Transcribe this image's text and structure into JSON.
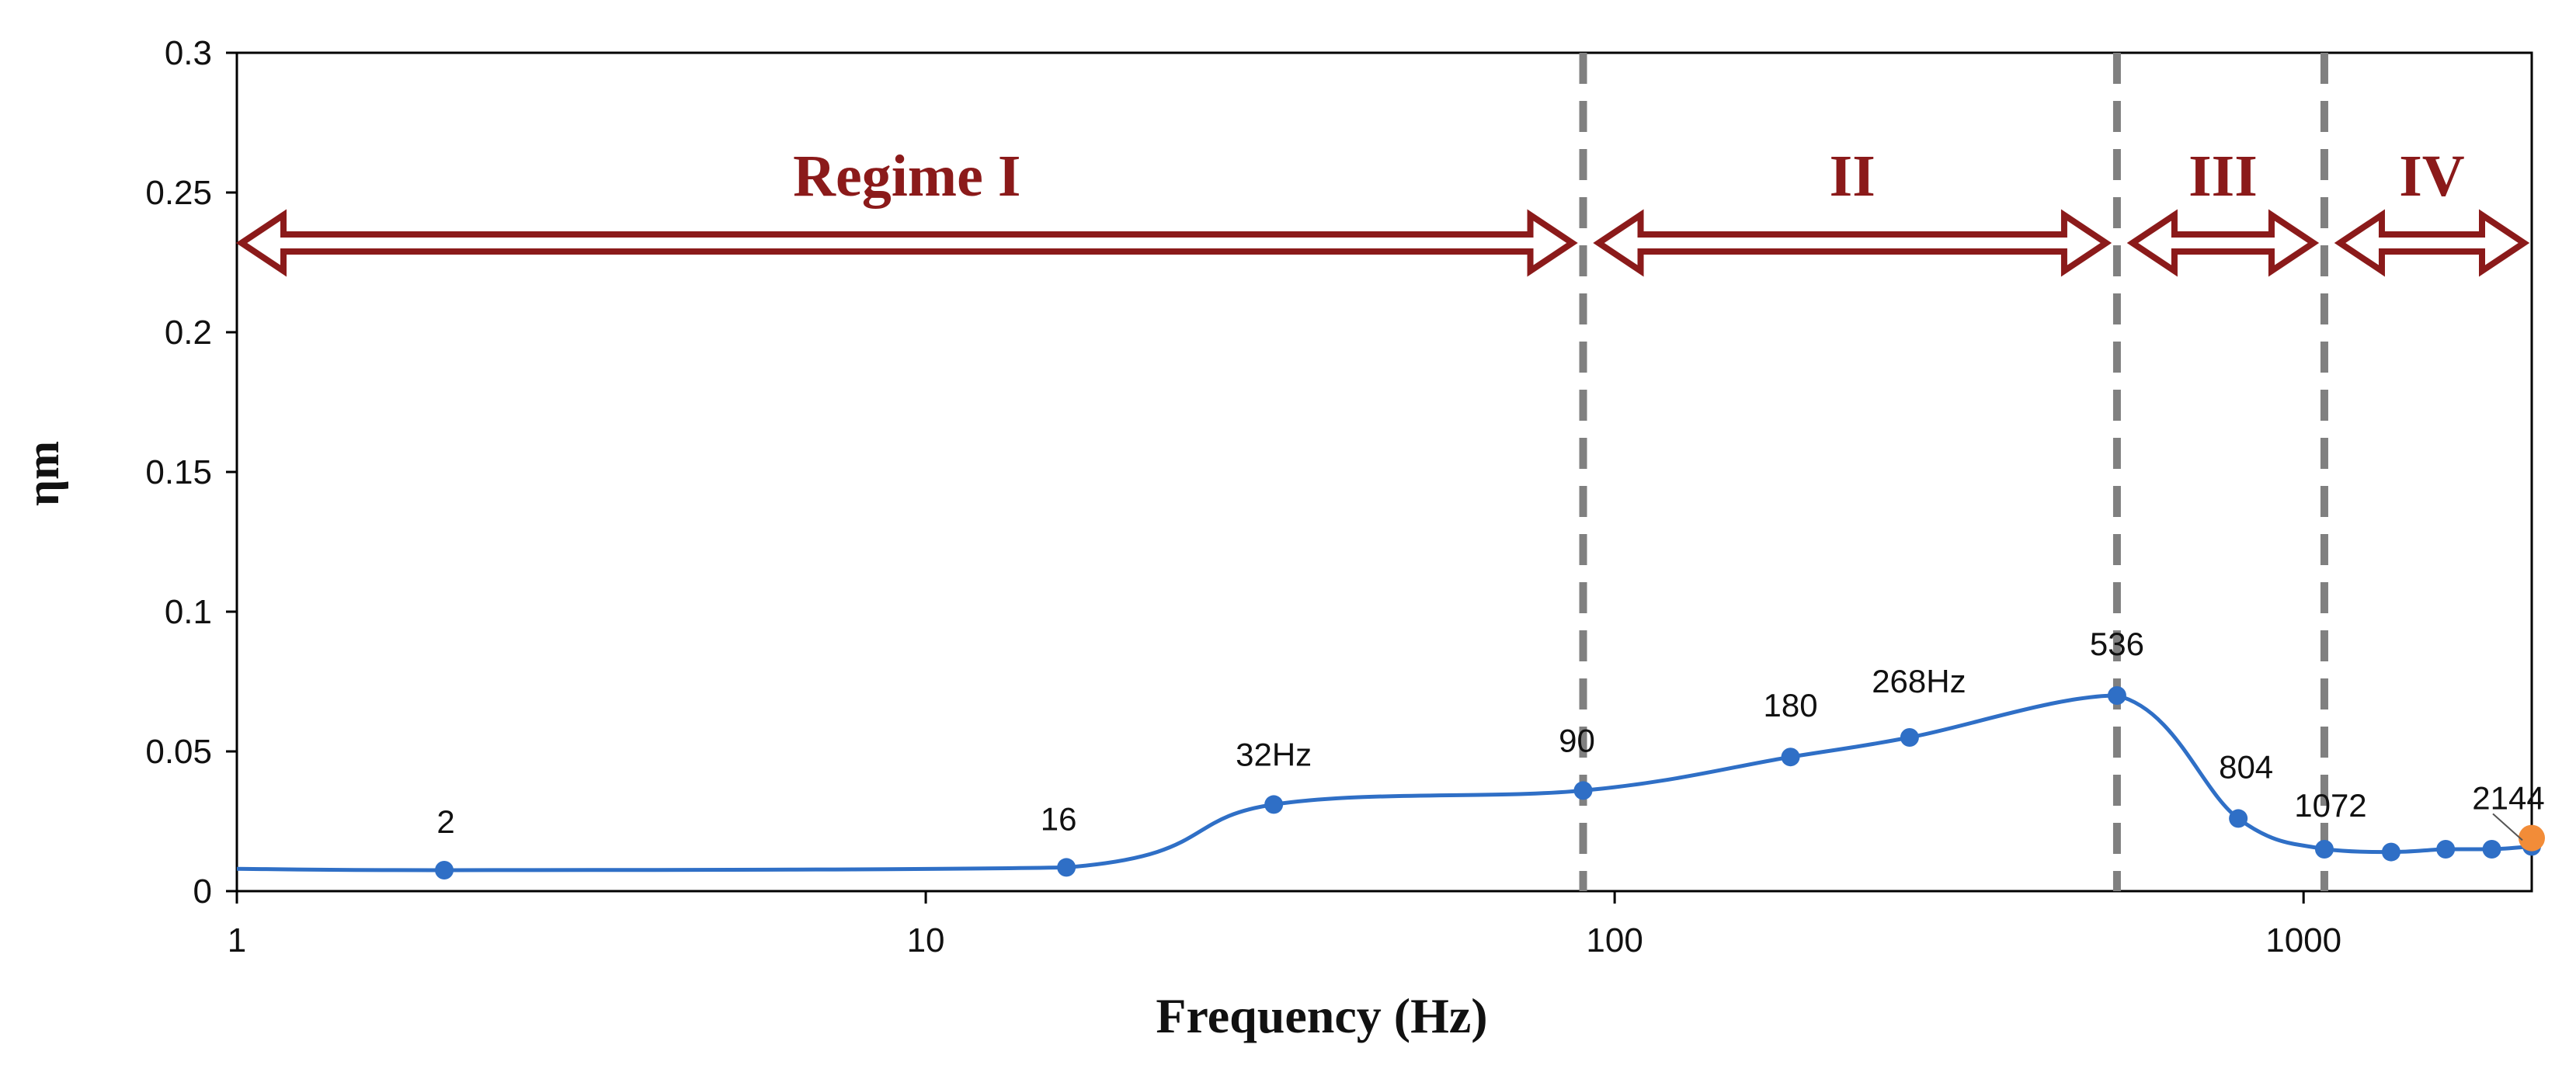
{
  "chart_data": {
    "type": "line",
    "xlabel": "Frequency (Hz)",
    "ylabel": "ηm",
    "xscale": "log",
    "xlim": [
      1,
      2144
    ],
    "ylim": [
      0,
      0.3
    ],
    "grid": false,
    "x_ticks": [
      "1",
      "10",
      "100",
      "1000"
    ],
    "y_ticks": [
      "0",
      "0.05",
      "0.1",
      "0.15",
      "0.2",
      "0.25",
      "0.3"
    ],
    "series": [
      {
        "color": "#2f6fc6",
        "points": [
          {
            "x": 1,
            "y": 0.008
          },
          {
            "x": 2,
            "y": 0.0075,
            "label": "2"
          },
          {
            "x": 16,
            "y": 0.0085,
            "label": "16"
          },
          {
            "x": 32,
            "y": 0.031,
            "label": "32Hz"
          },
          {
            "x": 90,
            "y": 0.036,
            "label": "90"
          },
          {
            "x": 180,
            "y": 0.048,
            "label": "180"
          },
          {
            "x": 268,
            "y": 0.055,
            "label": "268Hz"
          },
          {
            "x": 536,
            "y": 0.07,
            "label": "536"
          },
          {
            "x": 804,
            "y": 0.026,
            "label": "804"
          },
          {
            "x": 1072,
            "y": 0.015,
            "label": "1072"
          },
          {
            "x": 1340,
            "y": 0.014
          },
          {
            "x": 1608,
            "y": 0.015
          },
          {
            "x": 1876,
            "y": 0.015
          },
          {
            "x": 2144,
            "y": 0.016,
            "label": "2144"
          }
        ]
      }
    ],
    "highlight_point": {
      "x": 2144,
      "y": 0.019,
      "color": "#f28c38"
    },
    "vertical_lines": [
      90,
      536,
      1072
    ],
    "regimes": [
      {
        "label": "Regime I",
        "from": 1,
        "to": 90
      },
      {
        "label": "II",
        "from": 90,
        "to": 536
      },
      {
        "label": "III",
        "from": 536,
        "to": 1072
      },
      {
        "label": "IV",
        "from": 1072,
        "to": 2144
      }
    ],
    "colors": {
      "line": "#2f6fc6",
      "marker": "#2f6fc6",
      "highlight": "#f28c38",
      "vline": "#808080",
      "regime": "#8b1a1a"
    }
  }
}
